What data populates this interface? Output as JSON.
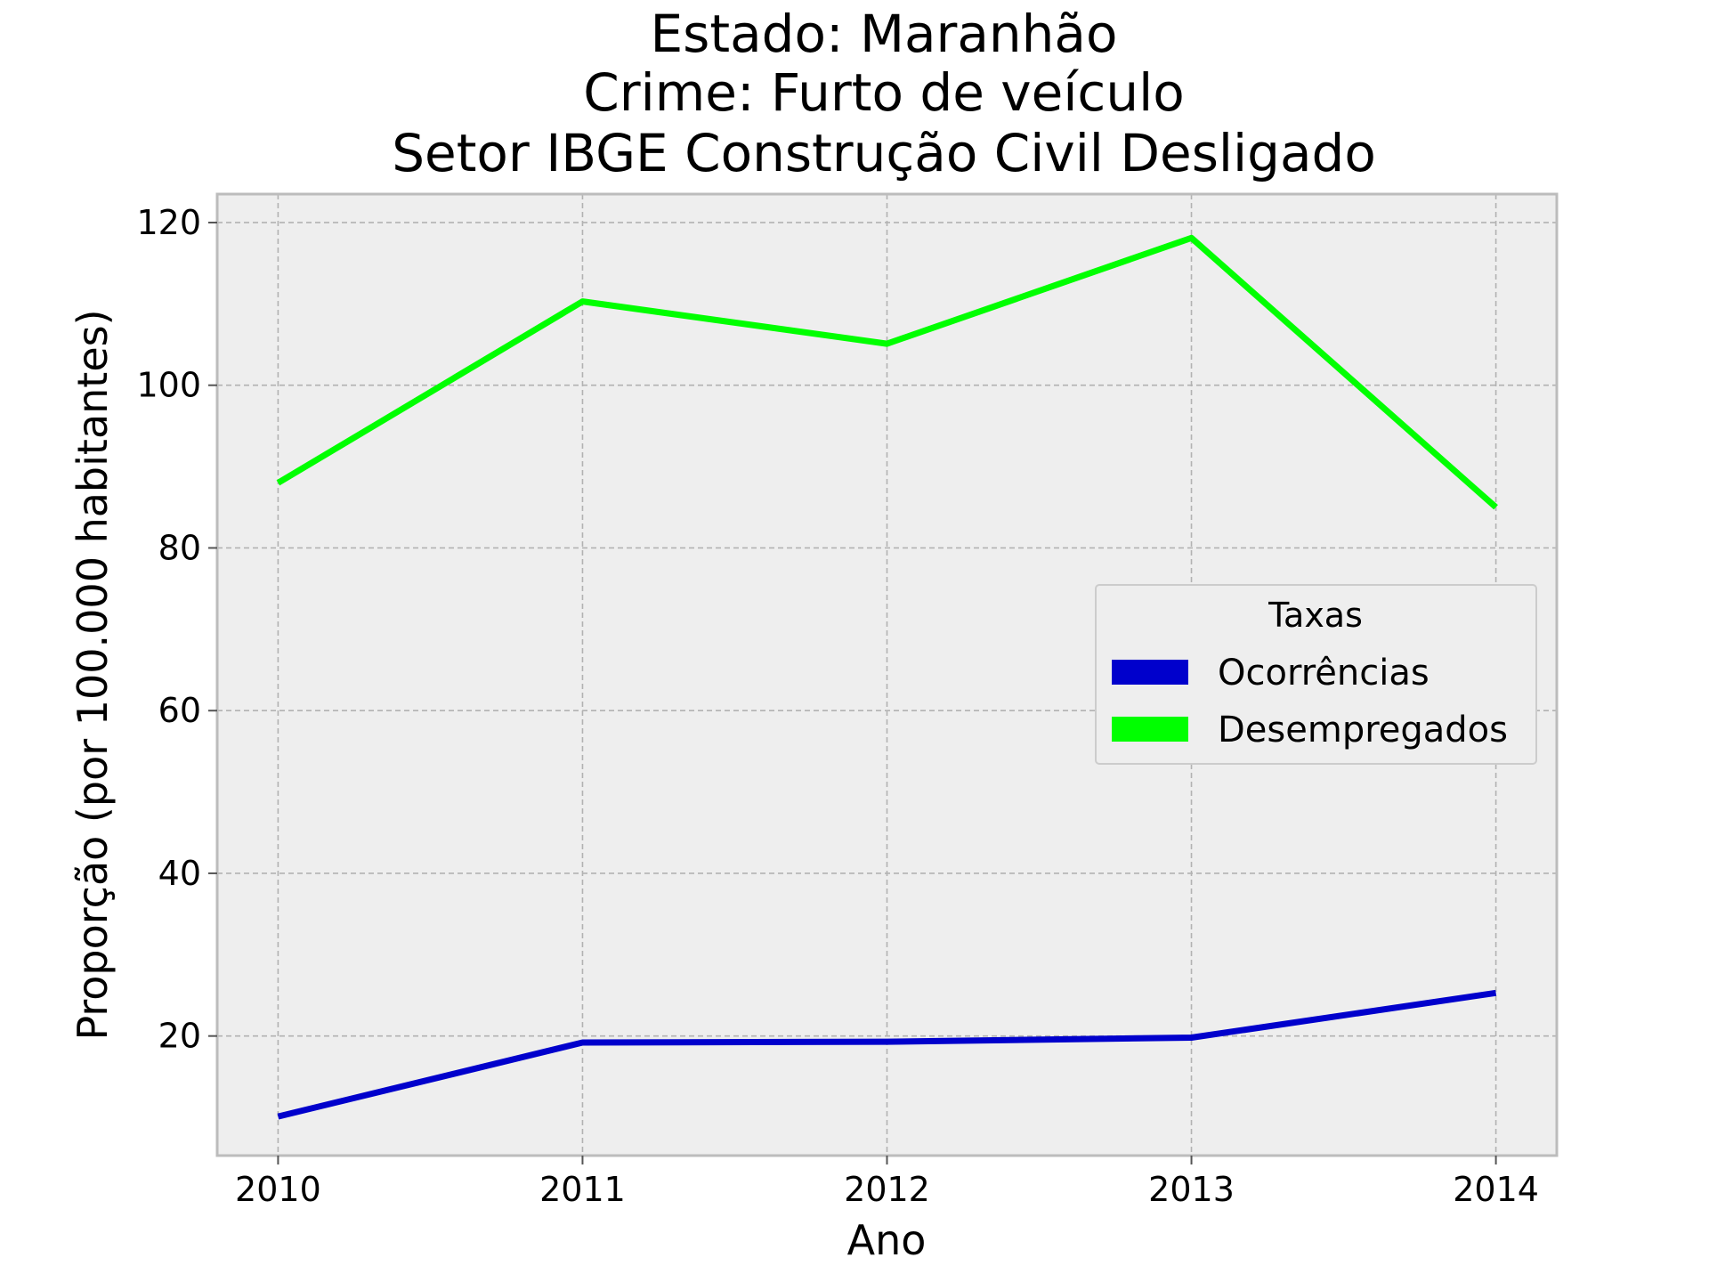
{
  "chart_data": {
    "type": "line",
    "title_lines": [
      "Estado: Maranhão",
      "Crime: Furto de veículo",
      "Setor IBGE  Construção Civil   Desligado"
    ],
    "xlabel": "Ano",
    "ylabel": "Proporção (por 100.000 habitantes)",
    "x": [
      2010,
      2011,
      2012,
      2013,
      2014
    ],
    "x_tick_labels": [
      "2010",
      "2011",
      "2012",
      "2013",
      "2014"
    ],
    "xlim": [
      2009.8,
      2014.2
    ],
    "ylim": [
      5.3,
      123.5
    ],
    "y_ticks": [
      20,
      40,
      60,
      80,
      100,
      120
    ],
    "y_tick_labels": [
      "20",
      "40",
      "60",
      "80",
      "100",
      "120"
    ],
    "grid": true,
    "legend": {
      "title": "Taxas",
      "placement": "center-right"
    },
    "series": [
      {
        "name": "Ocorrências",
        "color": "#0000cc",
        "values": [
          10.1,
          19.2,
          19.3,
          19.8,
          25.3
        ]
      },
      {
        "name": "Desempregados",
        "color": "#00ff00",
        "values": [
          88.0,
          110.3,
          105.1,
          118.1,
          85.0
        ]
      }
    ]
  }
}
